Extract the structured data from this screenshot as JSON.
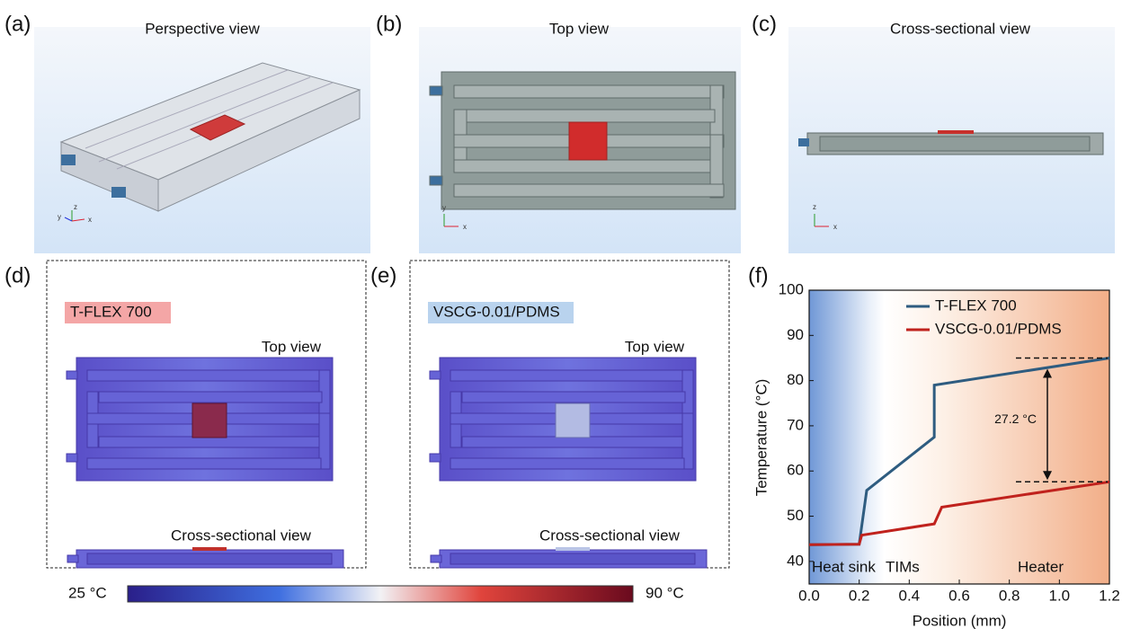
{
  "panels": [
    {
      "label": "(a)",
      "title": "Perspective view"
    },
    {
      "label": "(b)",
      "title": "Top view"
    },
    {
      "label": "(c)",
      "title": "Cross-sectional view"
    },
    {
      "label": "(d)",
      "tag": "T-FLEX 700",
      "top_title": "Top view",
      "cross_title": "Cross-sectional view"
    },
    {
      "label": "(e)",
      "tag": "VSCG-0.01/PDMS",
      "top_title": "Top view",
      "cross_title": "Cross-sectional view"
    },
    {
      "label": "(f)"
    }
  ],
  "axis_letters": {
    "x": "x",
    "y": "y",
    "z": "z"
  },
  "colorbar": {
    "min_label": "25 °C",
    "max_label": "90 °C"
  },
  "chart_data": {
    "type": "line",
    "xlabel": "Position (mm)",
    "ylabel": "Temperature (°C)",
    "xlim": [
      0,
      1.2
    ],
    "ylim": [
      35,
      100
    ],
    "xticks": [
      {
        "value": 0,
        "label": "0.0"
      },
      0.2,
      0.4,
      0.6,
      0.8,
      {
        "value": 1,
        "label": "1.0"
      },
      1.2
    ],
    "yticks": [
      40,
      50,
      60,
      70,
      80,
      90,
      100
    ],
    "legend": "upper right",
    "series": [
      {
        "name": "T-FLEX 700",
        "color": "#2e5c80",
        "x": [
          0,
          0.2,
          0.23,
          0.5,
          0.5,
          1.2
        ],
        "values": [
          43.7,
          43.8,
          55.7,
          67.5,
          79,
          85
        ]
      },
      {
        "name": "VSCG-0.01/PDMS",
        "color": "#c0221d",
        "x": [
          0,
          0.2,
          0.21,
          0.5,
          0.53,
          1.2
        ],
        "values": [
          43.7,
          43.8,
          45.8,
          48.3,
          52,
          57.6
        ]
      }
    ],
    "regions": [
      "Heat sink",
      "TIMs",
      "Heater"
    ],
    "annotation": "27.2 °C"
  }
}
